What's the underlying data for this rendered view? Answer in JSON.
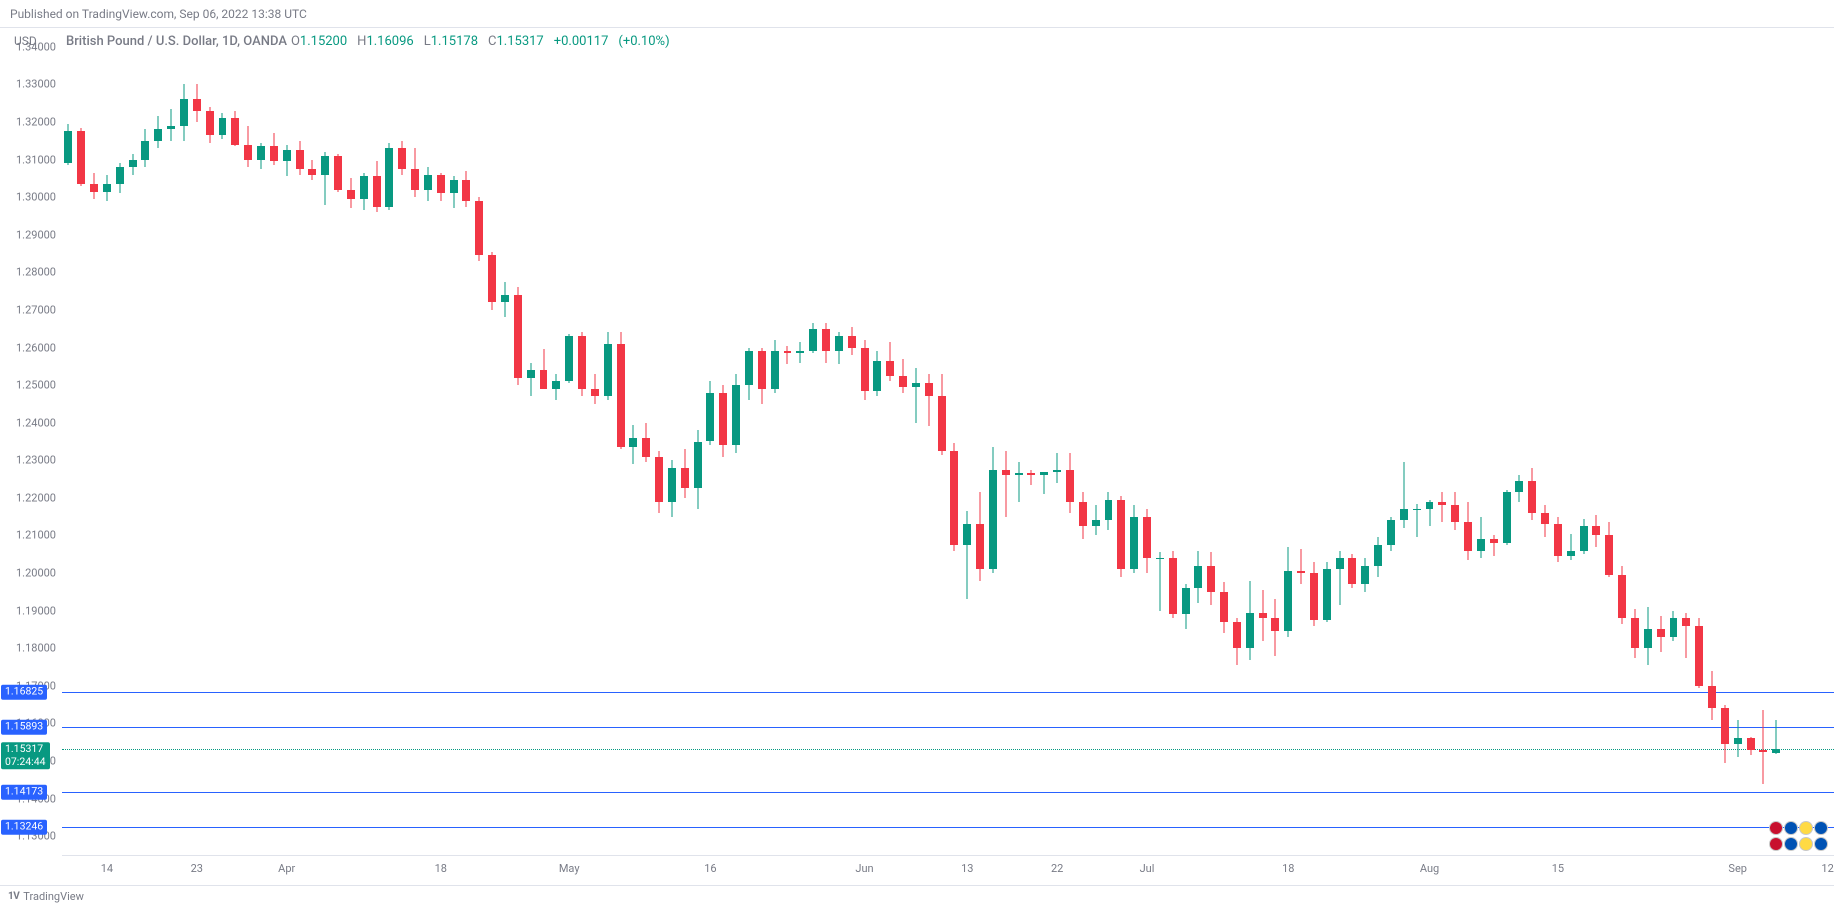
{
  "header": {
    "published_text": "Published on TradingView.com, Sep 06, 2022 13:38 UTC"
  },
  "symbol": {
    "axis_title": "USD",
    "title": "British Pound / U.S. Dollar, 1D, OANDA",
    "ohlc": {
      "o_label": "O",
      "o_value": "1.15200",
      "o_color": "green",
      "h_label": "H",
      "h_value": "1.16096",
      "h_color": "green",
      "l_label": "L",
      "l_value": "1.15178",
      "l_color": "green",
      "c_label": "C",
      "c_value": "1.15317",
      "c_color": "green",
      "chg_value": "+0.00117",
      "chg_pct": "(+0.10%)",
      "chg_color": "green"
    }
  },
  "footer": {
    "logo_glyph": "1V",
    "brand": "TradingView"
  },
  "chart": {
    "type": "candlestick",
    "background_color": "#ffffff",
    "grid_color": "#e0e3eb",
    "up_color": "#089981",
    "down_color": "#f23645",
    "ylim": [
      1.125,
      1.345
    ],
    "yticks": [
      {
        "v": 1.13,
        "label": "1.13000"
      },
      {
        "v": 1.14,
        "label": "1.14000"
      },
      {
        "v": 1.15,
        "label": "1.15000"
      },
      {
        "v": 1.16,
        "label": "1.16000"
      },
      {
        "v": 1.17,
        "label": "1.17000"
      },
      {
        "v": 1.18,
        "label": "1.18000"
      },
      {
        "v": 1.19,
        "label": "1.19000"
      },
      {
        "v": 1.2,
        "label": "1.20000"
      },
      {
        "v": 1.21,
        "label": "1.21000"
      },
      {
        "v": 1.22,
        "label": "1.22000"
      },
      {
        "v": 1.23,
        "label": "1.23000"
      },
      {
        "v": 1.24,
        "label": "1.24000"
      },
      {
        "v": 1.25,
        "label": "1.25000"
      },
      {
        "v": 1.26,
        "label": "1.26000"
      },
      {
        "v": 1.27,
        "label": "1.27000"
      },
      {
        "v": 1.28,
        "label": "1.28000"
      },
      {
        "v": 1.29,
        "label": "1.29000"
      },
      {
        "v": 1.3,
        "label": "1.30000"
      },
      {
        "v": 1.31,
        "label": "1.31000"
      },
      {
        "v": 1.32,
        "label": "1.32000"
      },
      {
        "v": 1.33,
        "label": "1.33000"
      },
      {
        "v": 1.34,
        "label": "1.34000"
      }
    ],
    "xticks": [
      {
        "i": 3,
        "label": "14"
      },
      {
        "i": 10,
        "label": "23"
      },
      {
        "i": 17,
        "label": "Apr"
      },
      {
        "i": 29,
        "label": "18"
      },
      {
        "i": 39,
        "label": "May"
      },
      {
        "i": 50,
        "label": "16"
      },
      {
        "i": 62,
        "label": "Jun"
      },
      {
        "i": 70,
        "label": "13"
      },
      {
        "i": 77,
        "label": "22"
      },
      {
        "i": 84,
        "label": "Jul"
      },
      {
        "i": 95,
        "label": "18"
      },
      {
        "i": 106,
        "label": "Aug"
      },
      {
        "i": 116,
        "label": "15"
      },
      {
        "i": 130,
        "label": "Sep"
      },
      {
        "i": 137,
        "label": "12"
      }
    ],
    "hlines": [
      {
        "v": 1.16825,
        "label": "1.16825",
        "color": "#2962ff",
        "tag_bg": "#2962ff"
      },
      {
        "v": 1.15893,
        "label": "1.15893",
        "color": "#2962ff",
        "tag_bg": "#2962ff"
      },
      {
        "v": 1.14173,
        "label": "1.14173",
        "color": "#2962ff",
        "tag_bg": "#2962ff"
      },
      {
        "v": 1.13246,
        "label": "1.13246",
        "color": "#2962ff",
        "tag_bg": "#2962ff"
      }
    ],
    "price_line": {
      "v": 1.15317,
      "label": "1.15317",
      "countdown": "07:24:44",
      "color": "#089981",
      "tag_bg": "#089981",
      "style": "dotted"
    },
    "candle_width_ratio": 0.62,
    "n_slots": 138,
    "candles": [
      {
        "o": 1.309,
        "h": 1.3195,
        "l": 1.3085,
        "c": 1.3175
      },
      {
        "o": 1.3175,
        "h": 1.3185,
        "l": 1.303,
        "c": 1.3035
      },
      {
        "o": 1.3035,
        "h": 1.3065,
        "l": 1.2995,
        "c": 1.3015
      },
      {
        "o": 1.3015,
        "h": 1.306,
        "l": 1.299,
        "c": 1.3035
      },
      {
        "o": 1.3035,
        "h": 1.309,
        "l": 1.301,
        "c": 1.308
      },
      {
        "o": 1.308,
        "h": 1.3115,
        "l": 1.306,
        "c": 1.31
      },
      {
        "o": 1.31,
        "h": 1.318,
        "l": 1.308,
        "c": 1.315
      },
      {
        "o": 1.315,
        "h": 1.3215,
        "l": 1.313,
        "c": 1.318
      },
      {
        "o": 1.318,
        "h": 1.3235,
        "l": 1.315,
        "c": 1.319
      },
      {
        "o": 1.319,
        "h": 1.33,
        "l": 1.315,
        "c": 1.326
      },
      {
        "o": 1.326,
        "h": 1.33,
        "l": 1.32,
        "c": 1.323
      },
      {
        "o": 1.323,
        "h": 1.324,
        "l": 1.3145,
        "c": 1.3165
      },
      {
        "o": 1.3165,
        "h": 1.3225,
        "l": 1.3155,
        "c": 1.321
      },
      {
        "o": 1.321,
        "h": 1.323,
        "l": 1.3135,
        "c": 1.314
      },
      {
        "o": 1.314,
        "h": 1.319,
        "l": 1.308,
        "c": 1.31
      },
      {
        "o": 1.31,
        "h": 1.3145,
        "l": 1.3075,
        "c": 1.3135
      },
      {
        "o": 1.3135,
        "h": 1.317,
        "l": 1.3085,
        "c": 1.3095
      },
      {
        "o": 1.3095,
        "h": 1.314,
        "l": 1.3055,
        "c": 1.3125
      },
      {
        "o": 1.3125,
        "h": 1.315,
        "l": 1.306,
        "c": 1.3075
      },
      {
        "o": 1.3075,
        "h": 1.31,
        "l": 1.3045,
        "c": 1.306
      },
      {
        "o": 1.306,
        "h": 1.312,
        "l": 1.298,
        "c": 1.311
      },
      {
        "o": 1.311,
        "h": 1.3115,
        "l": 1.3015,
        "c": 1.302
      },
      {
        "o": 1.302,
        "h": 1.305,
        "l": 1.297,
        "c": 1.2995
      },
      {
        "o": 1.2995,
        "h": 1.3065,
        "l": 1.2965,
        "c": 1.3055
      },
      {
        "o": 1.3055,
        "h": 1.3095,
        "l": 1.296,
        "c": 1.2975
      },
      {
        "o": 1.2975,
        "h": 1.3145,
        "l": 1.2965,
        "c": 1.313
      },
      {
        "o": 1.313,
        "h": 1.315,
        "l": 1.306,
        "c": 1.3075
      },
      {
        "o": 1.3075,
        "h": 1.313,
        "l": 1.3,
        "c": 1.302
      },
      {
        "o": 1.302,
        "h": 1.308,
        "l": 1.299,
        "c": 1.306
      },
      {
        "o": 1.306,
        "h": 1.3065,
        "l": 1.299,
        "c": 1.301
      },
      {
        "o": 1.301,
        "h": 1.3055,
        "l": 1.297,
        "c": 1.3045
      },
      {
        "o": 1.3045,
        "h": 1.307,
        "l": 1.2975,
        "c": 1.299
      },
      {
        "o": 1.299,
        "h": 1.3,
        "l": 1.283,
        "c": 1.2845
      },
      {
        "o": 1.2845,
        "h": 1.2855,
        "l": 1.27,
        "c": 1.272
      },
      {
        "o": 1.272,
        "h": 1.2775,
        "l": 1.268,
        "c": 1.274
      },
      {
        "o": 1.274,
        "h": 1.276,
        "l": 1.25,
        "c": 1.252
      },
      {
        "o": 1.252,
        "h": 1.256,
        "l": 1.247,
        "c": 1.254
      },
      {
        "o": 1.254,
        "h": 1.2595,
        "l": 1.249,
        "c": 1.249
      },
      {
        "o": 1.249,
        "h": 1.253,
        "l": 1.246,
        "c": 1.251
      },
      {
        "o": 1.251,
        "h": 1.2635,
        "l": 1.2505,
        "c": 1.263
      },
      {
        "o": 1.263,
        "h": 1.264,
        "l": 1.247,
        "c": 1.249
      },
      {
        "o": 1.249,
        "h": 1.253,
        "l": 1.245,
        "c": 1.247
      },
      {
        "o": 1.247,
        "h": 1.264,
        "l": 1.246,
        "c": 1.261
      },
      {
        "o": 1.261,
        "h": 1.264,
        "l": 1.233,
        "c": 1.2335
      },
      {
        "o": 1.2335,
        "h": 1.2395,
        "l": 1.229,
        "c": 1.236
      },
      {
        "o": 1.236,
        "h": 1.24,
        "l": 1.2295,
        "c": 1.231
      },
      {
        "o": 1.231,
        "h": 1.2325,
        "l": 1.216,
        "c": 1.219
      },
      {
        "o": 1.219,
        "h": 1.23,
        "l": 1.215,
        "c": 1.228
      },
      {
        "o": 1.228,
        "h": 1.233,
        "l": 1.22,
        "c": 1.2225
      },
      {
        "o": 1.2225,
        "h": 1.238,
        "l": 1.217,
        "c": 1.235
      },
      {
        "o": 1.235,
        "h": 1.251,
        "l": 1.234,
        "c": 1.248
      },
      {
        "o": 1.248,
        "h": 1.25,
        "l": 1.231,
        "c": 1.234
      },
      {
        "o": 1.234,
        "h": 1.253,
        "l": 1.232,
        "c": 1.25
      },
      {
        "o": 1.25,
        "h": 1.26,
        "l": 1.246,
        "c": 1.259
      },
      {
        "o": 1.259,
        "h": 1.26,
        "l": 1.245,
        "c": 1.249
      },
      {
        "o": 1.249,
        "h": 1.262,
        "l": 1.248,
        "c": 1.259
      },
      {
        "o": 1.259,
        "h": 1.2605,
        "l": 1.2555,
        "c": 1.2585
      },
      {
        "o": 1.2585,
        "h": 1.2615,
        "l": 1.256,
        "c": 1.259
      },
      {
        "o": 1.259,
        "h": 1.2665,
        "l": 1.2585,
        "c": 1.265
      },
      {
        "o": 1.265,
        "h": 1.2665,
        "l": 1.256,
        "c": 1.259
      },
      {
        "o": 1.259,
        "h": 1.264,
        "l": 1.2555,
        "c": 1.263
      },
      {
        "o": 1.263,
        "h": 1.2655,
        "l": 1.258,
        "c": 1.26
      },
      {
        "o": 1.26,
        "h": 1.262,
        "l": 1.246,
        "c": 1.2485
      },
      {
        "o": 1.2485,
        "h": 1.259,
        "l": 1.247,
        "c": 1.2565
      },
      {
        "o": 1.2565,
        "h": 1.2615,
        "l": 1.251,
        "c": 1.2525
      },
      {
        "o": 1.2525,
        "h": 1.257,
        "l": 1.248,
        "c": 1.2495
      },
      {
        "o": 1.2495,
        "h": 1.2545,
        "l": 1.24,
        "c": 1.2505
      },
      {
        "o": 1.2505,
        "h": 1.253,
        "l": 1.239,
        "c": 1.247
      },
      {
        "o": 1.247,
        "h": 1.253,
        "l": 1.2315,
        "c": 1.2325
      },
      {
        "o": 1.2325,
        "h": 1.2345,
        "l": 1.206,
        "c": 1.2075
      },
      {
        "o": 1.2075,
        "h": 1.2165,
        "l": 1.193,
        "c": 1.213
      },
      {
        "o": 1.213,
        "h": 1.2215,
        "l": 1.198,
        "c": 1.201
      },
      {
        "o": 1.201,
        "h": 1.2335,
        "l": 1.2,
        "c": 1.2275
      },
      {
        "o": 1.2275,
        "h": 1.2325,
        "l": 1.215,
        "c": 1.226
      },
      {
        "o": 1.226,
        "h": 1.2295,
        "l": 1.219,
        "c": 1.2265
      },
      {
        "o": 1.2265,
        "h": 1.2275,
        "l": 1.2235,
        "c": 1.226
      },
      {
        "o": 1.226,
        "h": 1.227,
        "l": 1.221,
        "c": 1.227
      },
      {
        "o": 1.227,
        "h": 1.232,
        "l": 1.224,
        "c": 1.2275
      },
      {
        "o": 1.2275,
        "h": 1.232,
        "l": 1.216,
        "c": 1.219
      },
      {
        "o": 1.219,
        "h": 1.2215,
        "l": 1.209,
        "c": 1.2125
      },
      {
        "o": 1.2125,
        "h": 1.218,
        "l": 1.21,
        "c": 1.214
      },
      {
        "o": 1.214,
        "h": 1.2215,
        "l": 1.2115,
        "c": 1.2195
      },
      {
        "o": 1.2195,
        "h": 1.2205,
        "l": 1.199,
        "c": 1.201
      },
      {
        "o": 1.201,
        "h": 1.218,
        "l": 1.2,
        "c": 1.215
      },
      {
        "o": 1.215,
        "h": 1.217,
        "l": 1.2,
        "c": 1.204
      },
      {
        "o": 1.204,
        "h": 1.2055,
        "l": 1.19,
        "c": 1.204
      },
      {
        "o": 1.204,
        "h": 1.206,
        "l": 1.188,
        "c": 1.189
      },
      {
        "o": 1.189,
        "h": 1.197,
        "l": 1.185,
        "c": 1.196
      },
      {
        "o": 1.196,
        "h": 1.206,
        "l": 1.192,
        "c": 1.202
      },
      {
        "o": 1.202,
        "h": 1.2055,
        "l": 1.1915,
        "c": 1.195
      },
      {
        "o": 1.195,
        "h": 1.1975,
        "l": 1.184,
        "c": 1.187
      },
      {
        "o": 1.187,
        "h": 1.188,
        "l": 1.1755,
        "c": 1.18
      },
      {
        "o": 1.18,
        "h": 1.198,
        "l": 1.177,
        "c": 1.1895
      },
      {
        "o": 1.1895,
        "h": 1.1955,
        "l": 1.182,
        "c": 1.188
      },
      {
        "o": 1.188,
        "h": 1.193,
        "l": 1.178,
        "c": 1.1845
      },
      {
        "o": 1.1845,
        "h": 1.207,
        "l": 1.183,
        "c": 1.2005
      },
      {
        "o": 1.2005,
        "h": 1.2065,
        "l": 1.197,
        "c": 1.2
      },
      {
        "o": 1.2,
        "h": 1.203,
        "l": 1.186,
        "c": 1.1875
      },
      {
        "o": 1.1875,
        "h": 1.203,
        "l": 1.187,
        "c": 1.201
      },
      {
        "o": 1.201,
        "h": 1.206,
        "l": 1.1915,
        "c": 1.204
      },
      {
        "o": 1.204,
        "h": 1.205,
        "l": 1.196,
        "c": 1.197
      },
      {
        "o": 1.197,
        "h": 1.204,
        "l": 1.195,
        "c": 1.202
      },
      {
        "o": 1.202,
        "h": 1.2095,
        "l": 1.199,
        "c": 1.2075
      },
      {
        "o": 1.2075,
        "h": 1.215,
        "l": 1.206,
        "c": 1.214
      },
      {
        "o": 1.214,
        "h": 1.2295,
        "l": 1.212,
        "c": 1.217
      },
      {
        "o": 1.217,
        "h": 1.2185,
        "l": 1.2095,
        "c": 1.217
      },
      {
        "o": 1.217,
        "h": 1.2195,
        "l": 1.2125,
        "c": 1.219
      },
      {
        "o": 1.219,
        "h": 1.2215,
        "l": 1.2135,
        "c": 1.218
      },
      {
        "o": 1.218,
        "h": 1.2215,
        "l": 1.2115,
        "c": 1.2135
      },
      {
        "o": 1.2135,
        "h": 1.219,
        "l": 1.2035,
        "c": 1.206
      },
      {
        "o": 1.206,
        "h": 1.215,
        "l": 1.204,
        "c": 1.209
      },
      {
        "o": 1.209,
        "h": 1.21,
        "l": 1.2045,
        "c": 1.208
      },
      {
        "o": 1.208,
        "h": 1.222,
        "l": 1.2075,
        "c": 1.2215
      },
      {
        "o": 1.2215,
        "h": 1.226,
        "l": 1.219,
        "c": 1.2245
      },
      {
        "o": 1.2245,
        "h": 1.228,
        "l": 1.214,
        "c": 1.216
      },
      {
        "o": 1.216,
        "h": 1.218,
        "l": 1.2095,
        "c": 1.213
      },
      {
        "o": 1.213,
        "h": 1.215,
        "l": 1.203,
        "c": 1.2045
      },
      {
        "o": 1.2045,
        "h": 1.2105,
        "l": 1.2035,
        "c": 1.206
      },
      {
        "o": 1.206,
        "h": 1.2145,
        "l": 1.205,
        "c": 1.2125
      },
      {
        "o": 1.2125,
        "h": 1.2155,
        "l": 1.207,
        "c": 1.21
      },
      {
        "o": 1.21,
        "h": 1.2135,
        "l": 1.199,
        "c": 1.1995
      },
      {
        "o": 1.1995,
        "h": 1.202,
        "l": 1.1865,
        "c": 1.188
      },
      {
        "o": 1.188,
        "h": 1.1905,
        "l": 1.1775,
        "c": 1.18
      },
      {
        "o": 1.18,
        "h": 1.191,
        "l": 1.1755,
        "c": 1.185
      },
      {
        "o": 1.185,
        "h": 1.1885,
        "l": 1.179,
        "c": 1.183
      },
      {
        "o": 1.183,
        "h": 1.19,
        "l": 1.182,
        "c": 1.188
      },
      {
        "o": 1.188,
        "h": 1.1895,
        "l": 1.1775,
        "c": 1.186
      },
      {
        "o": 1.186,
        "h": 1.188,
        "l": 1.1695,
        "c": 1.17
      },
      {
        "o": 1.17,
        "h": 1.174,
        "l": 1.161,
        "c": 1.164
      },
      {
        "o": 1.164,
        "h": 1.165,
        "l": 1.1495,
        "c": 1.1545
      },
      {
        "o": 1.1545,
        "h": 1.161,
        "l": 1.151,
        "c": 1.156
      },
      {
        "o": 1.156,
        "h": 1.1565,
        "l": 1.1515,
        "c": 1.153
      },
      {
        "o": 1.153,
        "h": 1.1635,
        "l": 1.144,
        "c": 1.1525
      },
      {
        "o": 1.152,
        "h": 1.161,
        "l": 1.1518,
        "c": 1.1532
      }
    ]
  }
}
